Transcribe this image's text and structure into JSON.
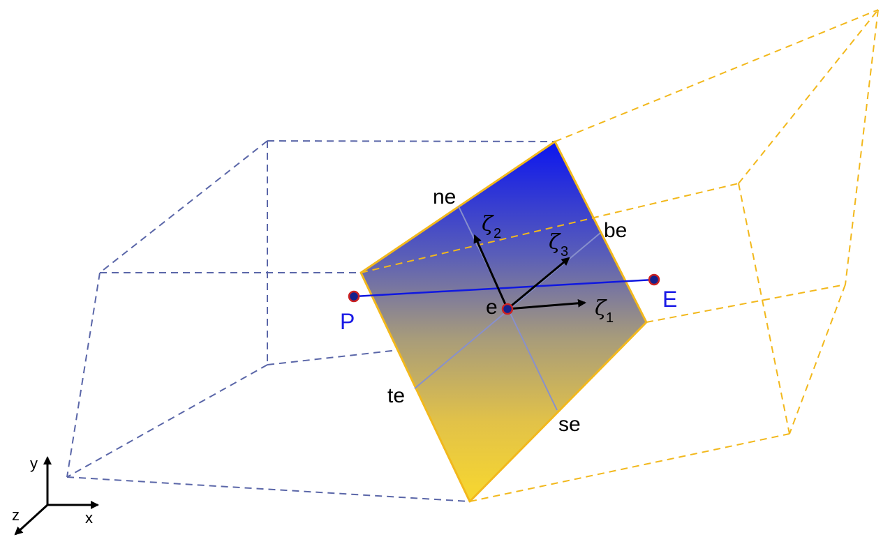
{
  "colors": {
    "cell_P_edges": "#5a66a8",
    "cell_E_edges": "#f2b81c",
    "face_top": "#0a14f0",
    "face_bottom": "#f8d82e",
    "face_border": "#f2b81c",
    "connector": "#1018e0",
    "node_fill": "#15208c",
    "node_ring": "#cc2222",
    "local_axes": "#8890cc",
    "vectors": "#000000",
    "node_label": "#1a1ae6"
  },
  "labels": {
    "P": "P",
    "E": "E",
    "e": "e",
    "ne": "ne",
    "be": "be",
    "te": "te",
    "se": "se",
    "zeta": "ζ",
    "zeta1_sub": "1",
    "zeta2_sub": "2",
    "zeta3_sub": "3"
  },
  "axes_triad": {
    "x": "x",
    "y": "y",
    "z": "z"
  }
}
